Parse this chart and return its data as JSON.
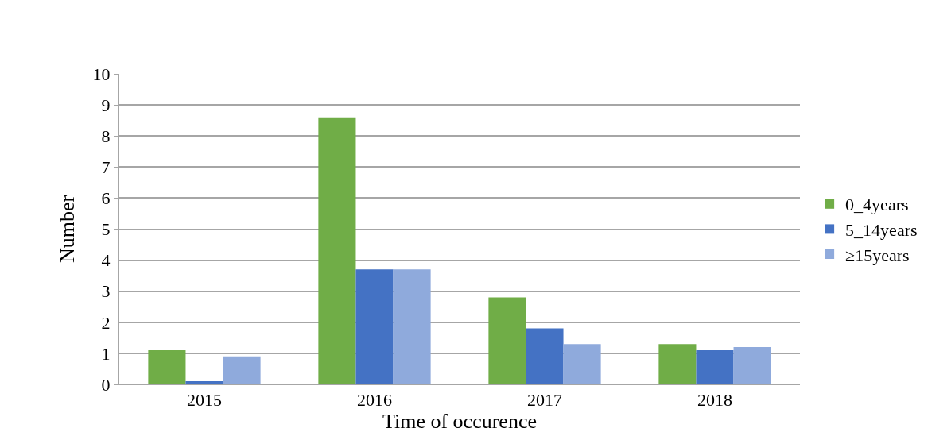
{
  "chart_data": {
    "type": "bar",
    "xlabel": "Time of occurence",
    "ylabel": "Number",
    "categories": [
      "2015",
      "2016",
      "2017",
      "2018"
    ],
    "series": [
      {
        "name": "0_4years",
        "color": "#70ad47",
        "values": [
          1.1,
          8.6,
          2.8,
          1.3
        ]
      },
      {
        "name": "5_14years",
        "color": "#4472c4",
        "values": [
          0.1,
          3.7,
          1.8,
          1.1
        ]
      },
      {
        "name": "≥15years",
        "color": "#8faadc",
        "values": [
          0.9,
          3.7,
          1.3,
          1.2
        ]
      }
    ],
    "ylim": [
      0,
      10
    ],
    "yticks": [
      0,
      1,
      2,
      3,
      4,
      5,
      6,
      7,
      8,
      9,
      10
    ],
    "grid": "y",
    "legend": "right"
  }
}
